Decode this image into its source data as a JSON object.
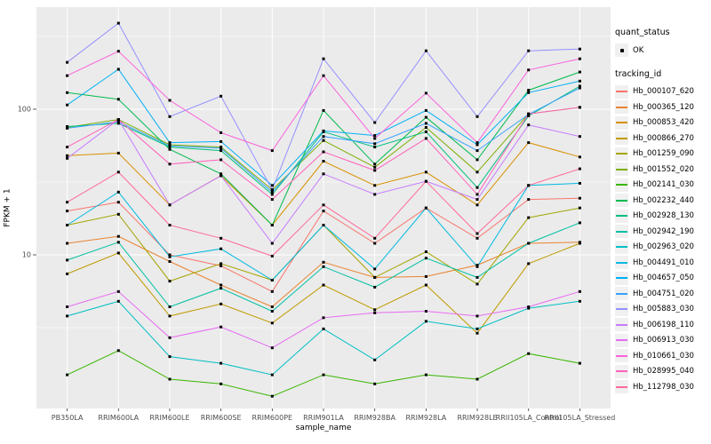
{
  "chart_data": {
    "type": "line",
    "title": "",
    "xlabel": "sample_name",
    "ylabel": "FPKM + 1",
    "yscale": "log10",
    "ylim": [
      0.9,
      503
    ],
    "grid": true,
    "legend_position": "right",
    "point_marker": "black-square",
    "categories": [
      "PB350LA",
      "RRIM600LA",
      "RRIM600LE",
      "RRIM600SE",
      "RRIM600PE",
      "RRIM901LA",
      "RRIM928BA",
      "RRIM928LA",
      "RRIM928LE",
      "RRII105LA_Control",
      "RRII105LA_Stressed"
    ],
    "ytick_values": [
      10,
      100
    ],
    "ytick_labels": [
      "10",
      "100"
    ],
    "grid_minor_values": [
      3.1623,
      31.623,
      316.23
    ],
    "series": [
      {
        "id": "Hb_000107_620",
        "color": "#F8766D",
        "values": [
          20,
          23,
          10,
          8.4,
          5.6,
          20,
          12,
          21,
          13,
          24,
          24.5
        ]
      },
      {
        "id": "Hb_000365_120",
        "color": "#EA8331",
        "values": [
          12,
          13.4,
          9,
          6.2,
          4.4,
          8.9,
          7,
          7.1,
          8.5,
          12,
          12.2
        ]
      },
      {
        "id": "Hb_000853_420",
        "color": "#D89000",
        "values": [
          48,
          50,
          22,
          35,
          16,
          44,
          30,
          37,
          22,
          59,
          47
        ]
      },
      {
        "id": "Hb_000866_270",
        "color": "#C09B00",
        "values": [
          7.4,
          10.3,
          3.8,
          4.6,
          3.4,
          6.2,
          4.2,
          6.2,
          2.9,
          8.7,
          12
        ]
      },
      {
        "id": "Hb_001259_090",
        "color": "#A3A500",
        "values": [
          16,
          19,
          6.6,
          8.7,
          6.7,
          16,
          7,
          10.5,
          6.3,
          18,
          21
        ]
      },
      {
        "id": "Hb_001552_020",
        "color": "#7CAE00",
        "values": [
          75,
          85,
          57,
          55,
          28,
          61,
          40,
          75,
          37,
          93,
          103
        ]
      },
      {
        "id": "Hb_002141_030",
        "color": "#39B600",
        "values": [
          1.5,
          2.2,
          1.4,
          1.3,
          1.07,
          1.5,
          1.3,
          1.5,
          1.4,
          2.1,
          1.8
        ]
      },
      {
        "id": "Hb_002232_440",
        "color": "#00BB4E",
        "values": [
          130,
          117,
          53,
          36,
          16,
          98,
          42,
          88,
          45,
          135,
          180
        ]
      },
      {
        "id": "Hb_002928_130",
        "color": "#00BF7D",
        "values": [
          76,
          80,
          55,
          52,
          26,
          70,
          55,
          70,
          29,
          90,
          144
        ]
      },
      {
        "id": "Hb_002942_190",
        "color": "#00C1A3",
        "values": [
          9.2,
          12.2,
          4.4,
          5.9,
          4.1,
          8.3,
          6,
          9.5,
          7,
          12,
          16.6
        ]
      },
      {
        "id": "Hb_002963_020",
        "color": "#00BFC4",
        "values": [
          3.8,
          4.8,
          2.0,
          1.8,
          1.5,
          3.1,
          1.9,
          3.5,
          3.1,
          4.3,
          4.8
        ]
      },
      {
        "id": "Hb_004491_010",
        "color": "#00BAE0",
        "values": [
          16,
          27,
          9.7,
          11,
          6.7,
          16,
          8,
          21,
          8.3,
          30,
          31
        ]
      },
      {
        "id": "Hb_004657_050",
        "color": "#00B0F6",
        "values": [
          107,
          188,
          59,
          60,
          30,
          71,
          66,
          98,
          57,
          130,
          156
        ]
      },
      {
        "id": "Hb_004751_020",
        "color": "#35A2FF",
        "values": [
          74,
          82,
          56,
          54,
          27,
          65,
          58,
          80,
          52,
          92,
          140
        ]
      },
      {
        "id": "Hb_005883_030",
        "color": "#9590FF",
        "values": [
          210,
          390,
          89,
          123,
          28,
          222,
          81,
          252,
          89,
          252,
          259
        ]
      },
      {
        "id": "Hb_006198_110",
        "color": "#C77CFF",
        "values": [
          46,
          85,
          22,
          35,
          12,
          36,
          26,
          32,
          24,
          78,
          65
        ]
      },
      {
        "id": "Hb_006913_030",
        "color": "#E76BF3",
        "values": [
          4.4,
          5.6,
          2.7,
          3.2,
          2.3,
          3.7,
          4.0,
          4.1,
          3.8,
          4.4,
          5.6
        ]
      },
      {
        "id": "Hb_010661_030",
        "color": "#FA62DB",
        "values": [
          170,
          250,
          115,
          69,
          52,
          170,
          63,
          129,
          59,
          186,
          222
        ]
      },
      {
        "id": "Hb_028995_040",
        "color": "#FF62BC",
        "values": [
          55,
          85,
          42,
          45,
          24,
          51,
          38,
          63,
          26,
          93,
          103
        ]
      },
      {
        "id": "Hb_112798_030",
        "color": "#FF6A98",
        "values": [
          23,
          37,
          16,
          13,
          9.8,
          22,
          13,
          32,
          14,
          30,
          39
        ]
      }
    ]
  },
  "legend": {
    "quant_status_title": "quant_status",
    "ok_label": "OK",
    "tracking_id_title": "tracking_id"
  },
  "colors": {
    "panel_background": "#EBEBEB",
    "gridline": "#FFFFFF",
    "tick_mark": "#333333",
    "tick_label": "#4D4D4D",
    "axis_title": "#000000",
    "point": "#000000",
    "legend_key_background": "#F0F0F0"
  }
}
